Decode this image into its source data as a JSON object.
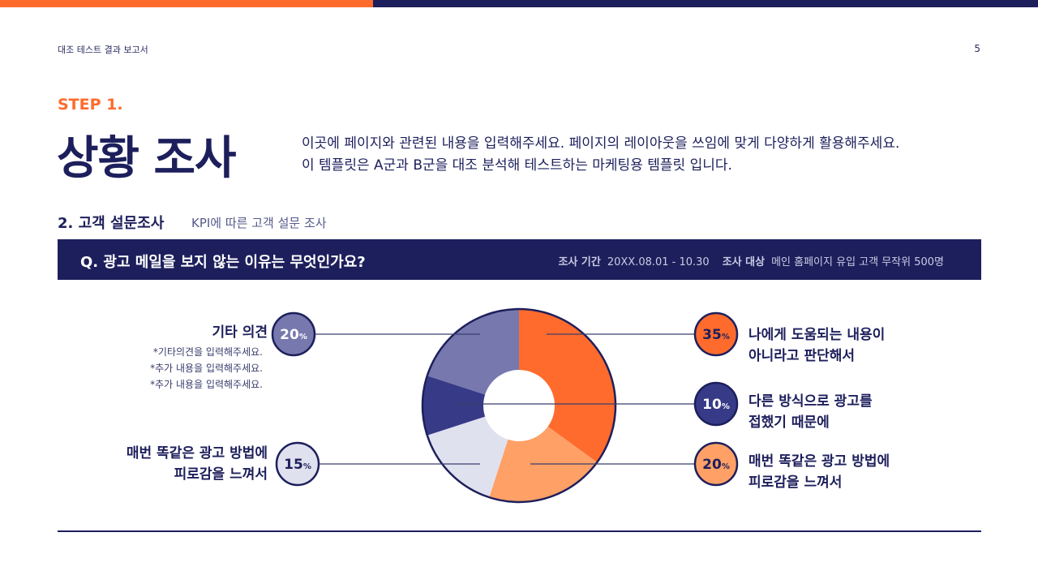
{
  "header": {
    "doc_title": "대조 테스트 결과 보고서",
    "page_number": "5"
  },
  "step_label": "STEP 1.",
  "title": "상황 조사",
  "description": [
    "이곳에 페이지와 관련된 내용을 입력해주세요. 페이지의 레이아웃을 쓰임에 맞게 다양하게 활용해주세요.",
    "이 템플릿은 A군과 B군을 대조 분석해 테스트하는 마케팅용 템플릿 입니다."
  ],
  "section": {
    "title": "2. 고객 설문조사",
    "subtitle": "KPI에 따른 고객 설문 조사"
  },
  "question": {
    "text": "Q. 광고 메일을 보지 않는 이유는 무엇인가요?",
    "period_label": "조사 기간",
    "period_value": "20XX.08.01 - 10.30",
    "target_label": "조사 대상",
    "target_value": "메인 홈페이지 유입 고객 무작위 500명"
  },
  "notes": [
    "*기타의견을 입력해주세요.",
    "*추가 내용을 입력해주세요.",
    "*추가 내용을 입력해주세요."
  ],
  "chart_data": {
    "type": "pie",
    "title": "",
    "series": [
      {
        "name": "나에게 도움되는 내용이 아니라고 판단해서",
        "lines": [
          "나에게 도움되는 내용이",
          "아니라고 판단해서"
        ],
        "value": 35,
        "label": "35",
        "color": "#ff6b2c",
        "badge_text_color": "#1d1f5c"
      },
      {
        "name": "매번 똑같은 광고 방법에 피로감을 느껴서",
        "lines": [
          "매번 똑같은 광고 방법에",
          "피로감을 느껴서"
        ],
        "value": 20,
        "label": "20",
        "color": "#ffa066",
        "badge_text_color": "#1d1f5c"
      },
      {
        "name": "매번 똑같은 광고 방법에 피로감을 느껴서",
        "lines": [
          "매번 똑같은 광고 방법에",
          "피로감을 느껴서"
        ],
        "value": 15,
        "label": "15",
        "color": "#e0e1ee",
        "badge_text_color": "#1d1f5c"
      },
      {
        "name": "다른 방식으로 광고를 접했기 때문에",
        "lines": [
          "다른 방식으로 광고를",
          "접했기 때문에"
        ],
        "value": 10,
        "label": "10",
        "color": "#373a86",
        "badge_text_color": "#ffffff"
      },
      {
        "name": "기타 의견",
        "lines": [
          "기타 의견"
        ],
        "value": 20,
        "label": "20",
        "color": "#7678ae",
        "badge_text_color": "#ffffff"
      }
    ],
    "unit": "%",
    "colors": {
      "outline": "#1d1f5c",
      "leader_line": "#3a3d6e"
    }
  }
}
